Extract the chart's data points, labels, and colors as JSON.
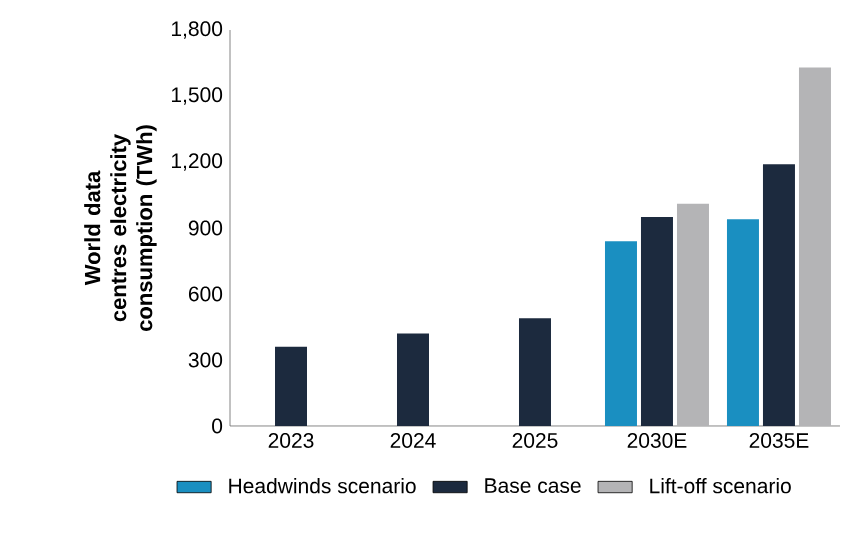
{
  "chart_data": {
    "type": "bar",
    "ylabel": "World data centres electricity consumption (TWh)",
    "categories": [
      "2023",
      "2024",
      "2025",
      "2030E",
      "2035E"
    ],
    "series": [
      {
        "name": "Headwinds scenario",
        "color": "#1a8fc1",
        "values": [
          null,
          null,
          null,
          840,
          940
        ]
      },
      {
        "name": "Base case",
        "color": "#1c2a3e",
        "values": [
          360,
          420,
          490,
          950,
          1190
        ]
      },
      {
        "name": "Lift-off scenario",
        "color": "#b4b4b6",
        "values": [
          null,
          null,
          null,
          1010,
          1630
        ]
      }
    ],
    "ylim": [
      0,
      1800
    ],
    "yticks": [
      0,
      300,
      600,
      900,
      {
        "value": 1200,
        "label": "1,200"
      },
      {
        "value": 1500,
        "label": "1,500"
      },
      {
        "value": 1800,
        "label": "1,800"
      }
    ],
    "legend": "bottom"
  }
}
